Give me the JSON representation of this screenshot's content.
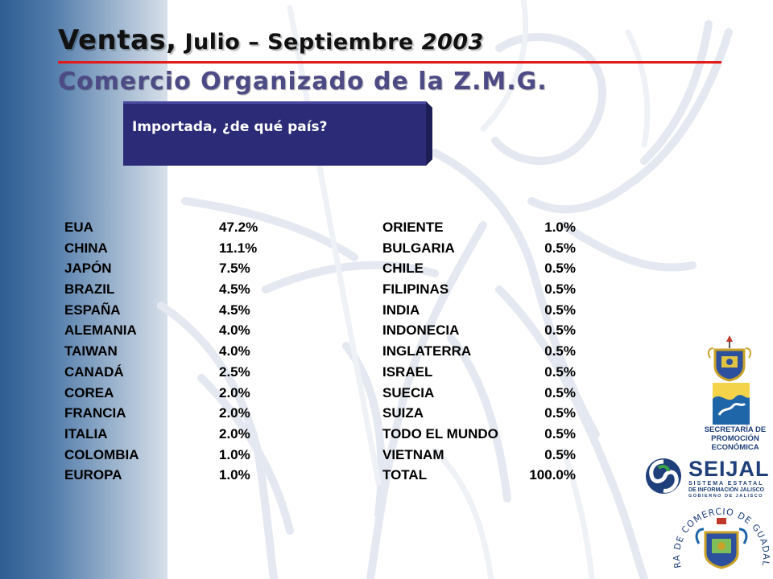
{
  "title": {
    "part1": "Ventas,",
    "part2": " Julio – Septiembre ",
    "part3": "2003"
  },
  "subtitle": "Comercio Organizado de la Z.M.G.",
  "question": "Importada, ¿de qué país?",
  "table_left": [
    {
      "country": "EUA",
      "percent": "47.2%"
    },
    {
      "country": "CHINA",
      "percent": "11.1%"
    },
    {
      "country": "JAPÓN",
      "percent": "7.5%"
    },
    {
      "country": "BRAZIL",
      "percent": "4.5%"
    },
    {
      "country": "ESPAÑA",
      "percent": "4.5%"
    },
    {
      "country": "ALEMANIA",
      "percent": "4.0%"
    },
    {
      "country": "TAIWAN",
      "percent": "4.0%"
    },
    {
      "country": "CANADÁ",
      "percent": "2.5%"
    },
    {
      "country": "COREA",
      "percent": "2.0%"
    },
    {
      "country": "FRANCIA",
      "percent": "2.0%"
    },
    {
      "country": "ITALIA",
      "percent": "2.0%"
    },
    {
      "country": "COLOMBIA",
      "percent": "1.0%"
    },
    {
      "country": "EUROPA",
      "percent": "1.0%"
    }
  ],
  "table_right": [
    {
      "country": "ORIENTE",
      "percent": "1.0%"
    },
    {
      "country": "BULGARIA",
      "percent": "0.5%"
    },
    {
      "country": "CHILE",
      "percent": "0.5%"
    },
    {
      "country": "FILIPINAS",
      "percent": "0.5%"
    },
    {
      "country": "INDIA",
      "percent": "0.5%"
    },
    {
      "country": "INDONECIA",
      "percent": "0.5%"
    },
    {
      "country": "INGLATERRA",
      "percent": "0.5%"
    },
    {
      "country": "ISRAEL",
      "percent": "0.5%"
    },
    {
      "country": "SUECIA",
      "percent": "0.5%"
    },
    {
      "country": "SUIZA",
      "percent": "0.5%"
    },
    {
      "country": "TODO EL MUNDO",
      "percent": "0.5%"
    },
    {
      "country": "VIETNAM",
      "percent": "0.5%"
    },
    {
      "country": "TOTAL",
      "percent": "100.0%"
    }
  ],
  "logos": {
    "secretaria": "SECRETARÍA DE PROMOCIÓN ECONÓMICA",
    "seijal_name": "SEIJAL",
    "seijal_sub1": "SISTEMA ESTATAL",
    "seijal_sub2": "DE INFORMACIÓN JALISCO",
    "seijal_sub3": "GOBIERNO DE JALISCO",
    "camara": "CAMARA DE COMERCIO DE GUADALAJARA"
  },
  "colors": {
    "rule": "#e21a1a",
    "subtitle": "#4d4b85",
    "question_box": "#2b2b78"
  }
}
